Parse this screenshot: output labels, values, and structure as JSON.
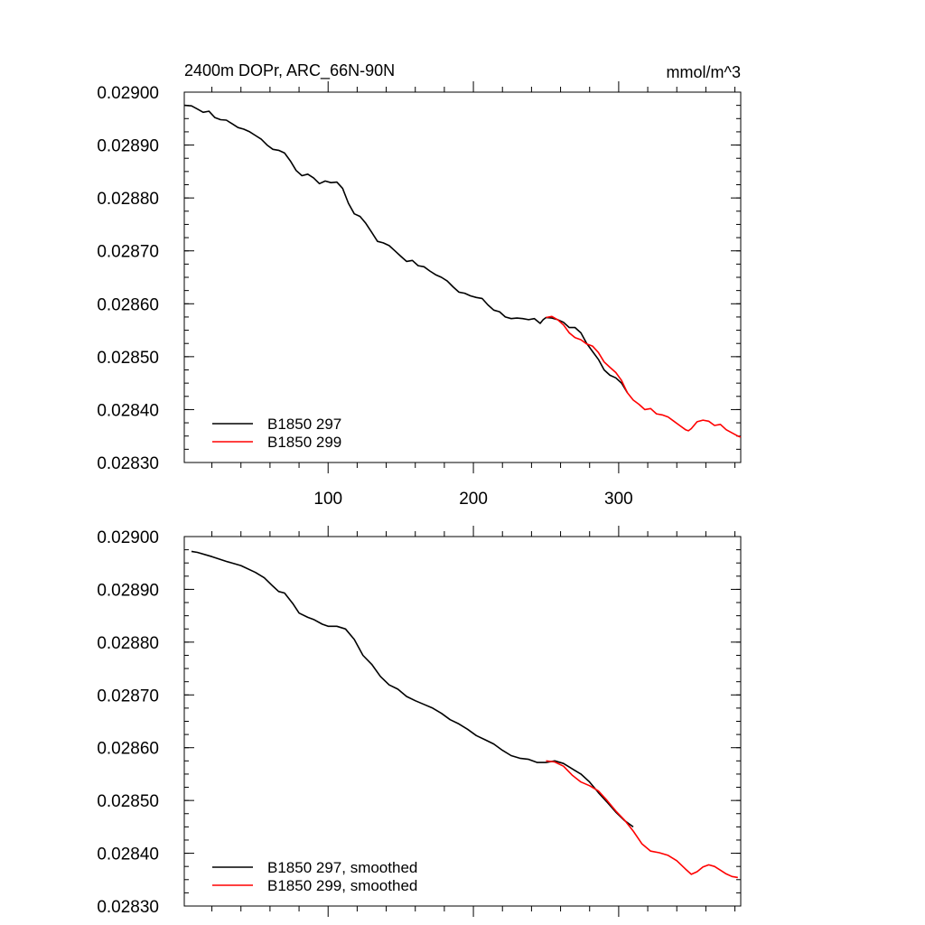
{
  "figure": {
    "title_left": "2400m DOPr, ARC_66N-90N",
    "title_right": "mmol/m^3"
  },
  "colors": {
    "series_297": "#000000",
    "series_299": "#ff0000",
    "axis": "#000000"
  },
  "chart_data": [
    {
      "type": "line",
      "panel": "top",
      "title": "2400m DOPr, ARC_66N-90N",
      "units": "mmol/m^3",
      "xlim": [
        1,
        384
      ],
      "ylim": [
        0.0283,
        0.029
      ],
      "xticks": [
        100,
        200,
        300
      ],
      "xtick_labels": [
        "100",
        "200",
        "300"
      ],
      "yticks": [
        0.0283,
        0.0284,
        0.0285,
        0.0286,
        0.0287,
        0.0288,
        0.0289,
        0.029
      ],
      "ytick_labels": [
        "0.02830",
        "0.02840",
        "0.02850",
        "0.02860",
        "0.02870",
        "0.02880",
        "0.02890",
        "0.02900"
      ],
      "legend_position": "bottom-left",
      "series": [
        {
          "name": "B1850 297",
          "color": "#000000",
          "x": [
            1,
            6,
            10,
            14,
            18,
            22,
            26,
            30,
            34,
            38,
            42,
            46,
            50,
            54,
            58,
            62,
            66,
            70,
            74,
            78,
            82,
            86,
            90,
            94,
            98,
            102,
            106,
            110,
            114,
            118,
            122,
            126,
            130,
            134,
            138,
            142,
            146,
            150,
            154,
            158,
            162,
            166,
            170,
            174,
            178,
            182,
            186,
            190,
            194,
            198,
            202,
            206,
            210,
            214,
            218,
            222,
            226,
            230,
            234,
            238,
            242,
            246,
            248,
            250,
            254,
            258,
            262,
            266,
            270,
            274,
            278,
            282,
            286,
            290,
            294,
            298,
            302,
            306
          ],
          "y": [
            0.028975,
            0.028974,
            0.028968,
            0.028962,
            0.028964,
            0.028952,
            0.028948,
            0.028947,
            0.02894,
            0.028933,
            0.02893,
            0.028925,
            0.028918,
            0.028911,
            0.0289,
            0.028892,
            0.02889,
            0.028885,
            0.02887,
            0.028852,
            0.028842,
            0.028845,
            0.028838,
            0.028827,
            0.028832,
            0.028829,
            0.02883,
            0.028818,
            0.02879,
            0.02877,
            0.028765,
            0.028752,
            0.028735,
            0.028718,
            0.028715,
            0.02871,
            0.0287,
            0.02869,
            0.02868,
            0.028682,
            0.028672,
            0.02867,
            0.028662,
            0.028655,
            0.02865,
            0.028643,
            0.028632,
            0.028622,
            0.02862,
            0.028615,
            0.028612,
            0.02861,
            0.028598,
            0.028588,
            0.028585,
            0.028575,
            0.028572,
            0.028573,
            0.028572,
            0.02857,
            0.028572,
            0.028563,
            0.02857,
            0.028574,
            0.028573,
            0.02857,
            0.028565,
            0.028555,
            0.028555,
            0.028545,
            0.028525,
            0.02851,
            0.028495,
            0.028475,
            0.028465,
            0.02846,
            0.02845,
            0.028432
          ]
        },
        {
          "name": "B1850 299",
          "color": "#ff0000",
          "x": [
            250,
            254,
            258,
            262,
            266,
            270,
            274,
            278,
            282,
            286,
            290,
            294,
            298,
            302,
            306,
            310,
            314,
            318,
            322,
            326,
            330,
            334,
            338,
            342,
            346,
            348,
            350,
            354,
            358,
            362,
            366,
            370,
            374,
            378,
            382,
            384
          ],
          "y": [
            0.028574,
            0.028576,
            0.02857,
            0.02856,
            0.028545,
            0.028536,
            0.028532,
            0.028524,
            0.02852,
            0.028508,
            0.02849,
            0.02848,
            0.02847,
            0.028455,
            0.028432,
            0.028418,
            0.02841,
            0.0284,
            0.028402,
            0.028392,
            0.02839,
            0.028386,
            0.028378,
            0.02837,
            0.028362,
            0.02836,
            0.028364,
            0.028377,
            0.02838,
            0.028378,
            0.02837,
            0.028372,
            0.028362,
            0.028356,
            0.02835,
            0.028348
          ]
        }
      ]
    },
    {
      "type": "line",
      "panel": "bottom",
      "xlim": [
        1,
        384
      ],
      "ylim": [
        0.0283,
        0.029
      ],
      "xticks": [
        100,
        200,
        300
      ],
      "xtick_labels": [],
      "yticks": [
        0.0283,
        0.0284,
        0.0285,
        0.0286,
        0.0287,
        0.0288,
        0.0289,
        0.029
      ],
      "ytick_labels": [
        "0.02830",
        "0.02840",
        "0.02850",
        "0.02860",
        "0.02870",
        "0.02880",
        "0.02890",
        "0.02900"
      ],
      "legend_position": "bottom-left",
      "series": [
        {
          "name": "B1850 297, smoothed",
          "color": "#000000",
          "x": [
            6,
            10,
            20,
            30,
            40,
            50,
            56,
            62,
            66,
            70,
            76,
            80,
            86,
            90,
            96,
            100,
            106,
            112,
            118,
            124,
            130,
            136,
            142,
            148,
            154,
            160,
            166,
            172,
            178,
            184,
            190,
            196,
            202,
            208,
            214,
            220,
            226,
            232,
            238,
            244,
            250,
            256,
            262,
            268,
            274,
            280,
            286,
            292,
            298,
            304,
            310
          ],
          "y": [
            0.028972,
            0.02897,
            0.028962,
            0.028953,
            0.028945,
            0.028932,
            0.028922,
            0.028906,
            0.028896,
            0.028893,
            0.028872,
            0.028855,
            0.028847,
            0.028843,
            0.028834,
            0.02883,
            0.02883,
            0.028825,
            0.028805,
            0.028775,
            0.028758,
            0.028735,
            0.028719,
            0.028711,
            0.028697,
            0.028689,
            0.028682,
            0.028675,
            0.028665,
            0.028653,
            0.028645,
            0.028635,
            0.028623,
            0.028615,
            0.028607,
            0.028595,
            0.028585,
            0.02858,
            0.028578,
            0.028572,
            0.028572,
            0.028575,
            0.02857,
            0.02856,
            0.02855,
            0.028535,
            0.028515,
            0.028497,
            0.028478,
            0.028462,
            0.02845
          ]
        },
        {
          "name": "B1850 299, smoothed",
          "color": "#ff0000",
          "x": [
            250,
            256,
            262,
            268,
            274,
            280,
            286,
            292,
            298,
            304,
            310,
            316,
            322,
            328,
            334,
            340,
            346,
            350,
            354,
            358,
            362,
            366,
            370,
            374,
            378,
            382
          ],
          "y": [
            0.028575,
            0.028573,
            0.028565,
            0.028548,
            0.028535,
            0.028528,
            0.028518,
            0.0285,
            0.02848,
            0.028463,
            0.028442,
            0.028418,
            0.028404,
            0.028401,
            0.028396,
            0.028386,
            0.02837,
            0.02836,
            0.028365,
            0.028374,
            0.028378,
            0.028375,
            0.028368,
            0.028361,
            0.028356,
            0.028354
          ]
        }
      ]
    }
  ]
}
